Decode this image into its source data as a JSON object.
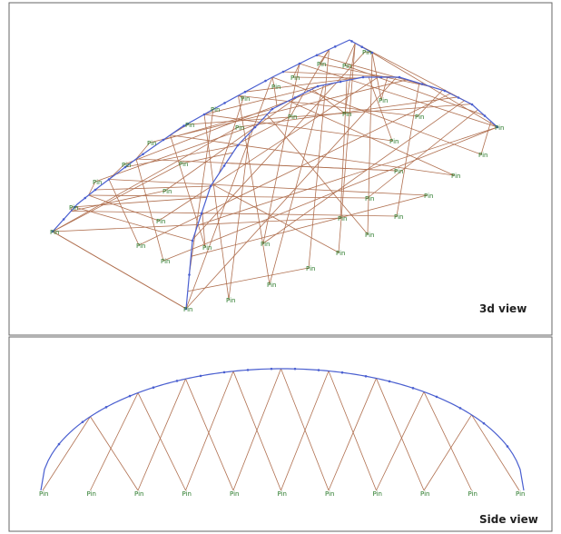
{
  "top_view": {
    "caption": "3d view",
    "supports": [
      "Pin",
      "Pin",
      "Pin",
      "Pin",
      "Pin",
      "Pin",
      "Pin",
      "Pin",
      "Pin",
      "Pin",
      "Pin",
      "Pin",
      "Pin",
      "Pin",
      "Pin",
      "Pin",
      "Pin",
      "Pin",
      "Pin",
      "Pin",
      "Pin",
      "Pin",
      "Pin",
      "Pin",
      "Pin",
      "Pin",
      "Pin",
      "Pin",
      "Pin",
      "Pin",
      "Pin",
      "Pin",
      "Pin",
      "Pin",
      "Pin",
      "Pin",
      "Pin",
      "Pin",
      "Pin",
      "Pin"
    ]
  },
  "side_view": {
    "caption": "Side view",
    "supports": [
      "Pin",
      "Pin",
      "Pin",
      "Pin",
      "Pin",
      "Pin",
      "Pin",
      "Pin",
      "Pin",
      "Pin",
      "Pin"
    ]
  }
}
